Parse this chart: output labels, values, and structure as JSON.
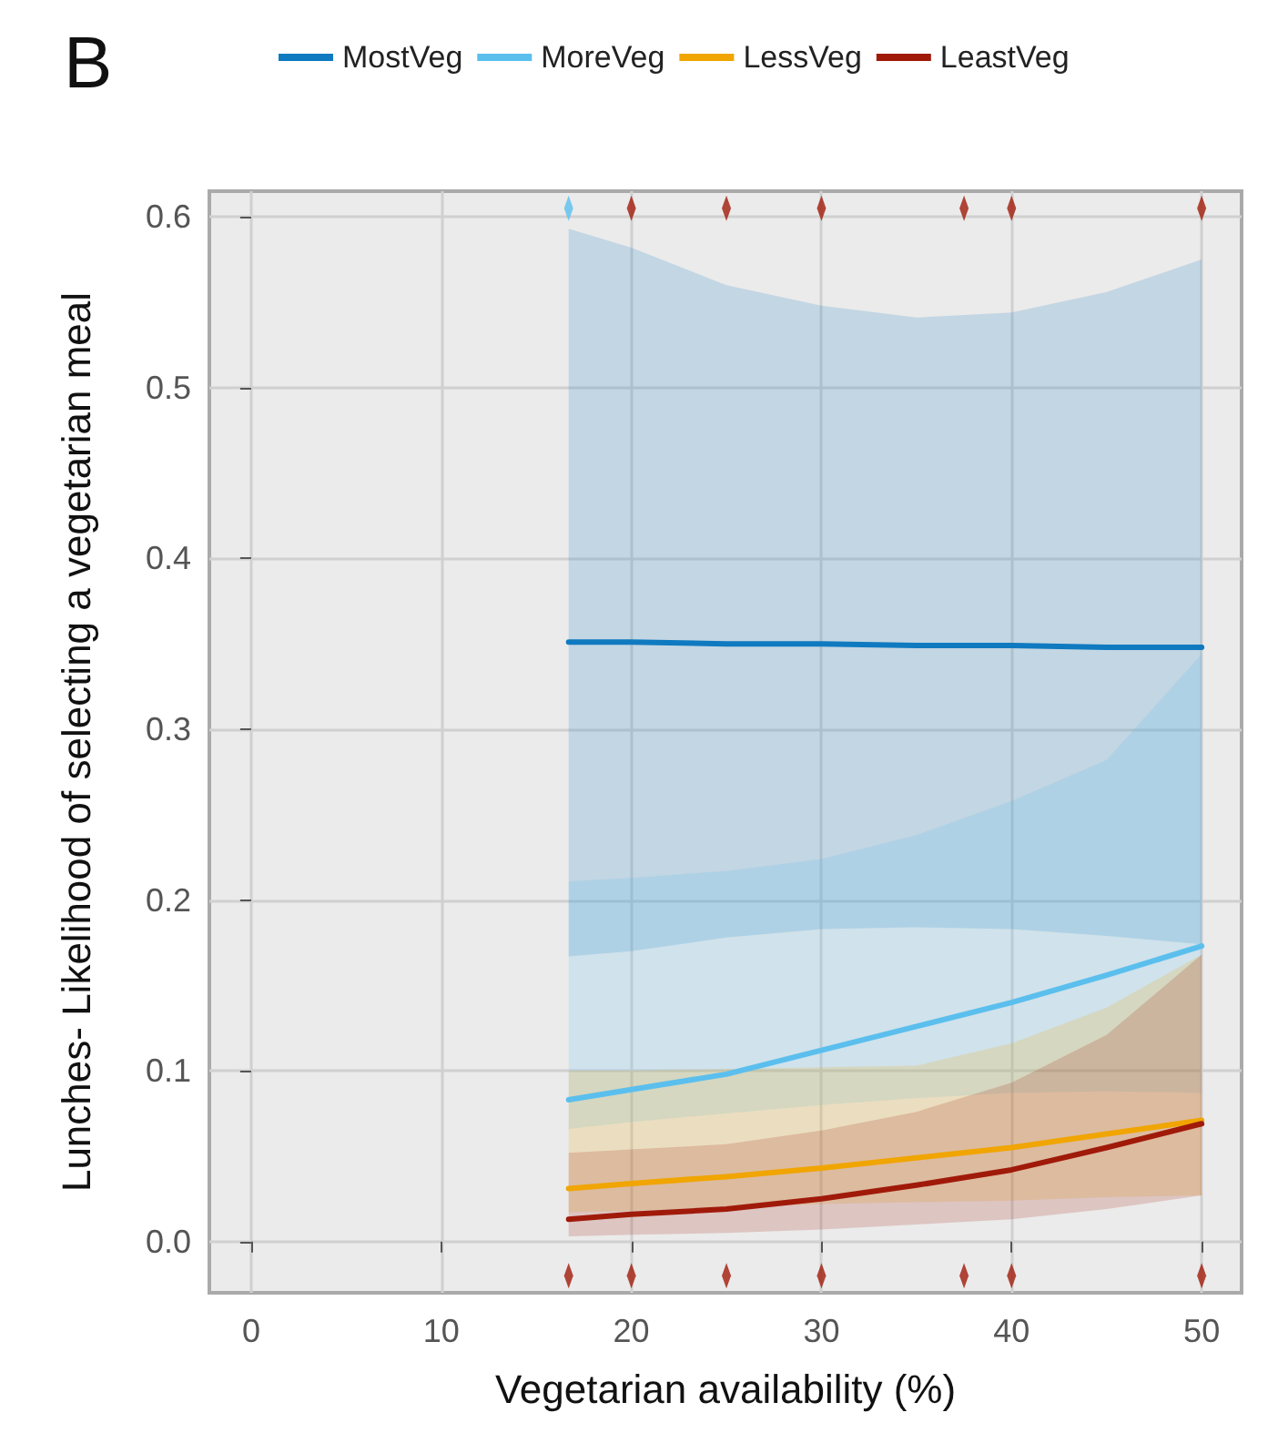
{
  "chart_data": {
    "type": "line",
    "title": "B",
    "xlabel": "Vegetarian availability (%)",
    "ylabel": "Lunches- Likelihood of selecting a vegetarian meal",
    "xlim": [
      -2.2,
      52.1
    ],
    "xticks": [
      0,
      10,
      20,
      30,
      40,
      50
    ],
    "ylim": [
      -0.03,
      0.615
    ],
    "yticks": [
      {
        "value": 0,
        "label": "0.0"
      },
      {
        "value": 0.1,
        "label": "0.1"
      },
      {
        "value": 0.2,
        "label": "0.2"
      },
      {
        "value": 0.3,
        "label": "0.3"
      },
      {
        "value": 0.4,
        "label": "0.4"
      },
      {
        "value": 0.5,
        "label": "0.5"
      },
      {
        "value": 0.6,
        "label": "0.6"
      }
    ],
    "grid": true,
    "legend": "top",
    "marker": "none",
    "line_style": "solid",
    "x": [
      16.7,
      20,
      25,
      30,
      35,
      40,
      45,
      50
    ],
    "series": [
      {
        "name": "MostVeg",
        "color": "#0f7ac0",
        "values": [
          0.351,
          0.351,
          0.35,
          0.35,
          0.349,
          0.349,
          0.348,
          0.348
        ],
        "lower": [
          0.167,
          0.17,
          0.178,
          0.183,
          0.184,
          0.183,
          0.179,
          0.174
        ],
        "upper": [
          0.593,
          0.582,
          0.56,
          0.548,
          0.541,
          0.544,
          0.556,
          0.575
        ]
      },
      {
        "name": "MoreVeg",
        "color": "#5bbfee",
        "values": [
          0.083,
          0.089,
          0.098,
          0.112,
          0.126,
          0.14,
          0.156,
          0.173
        ],
        "lower": [
          0.066,
          0.07,
          0.075,
          0.08,
          0.084,
          0.087,
          0.088,
          0.087
        ],
        "upper": [
          0.211,
          0.213,
          0.217,
          0.224,
          0.238,
          0.258,
          0.282,
          0.344
        ]
      },
      {
        "name": "LessVeg",
        "color": "#f0a500",
        "values": [
          0.031,
          0.034,
          0.038,
          0.043,
          0.049,
          0.055,
          0.063,
          0.071
        ],
        "lower": [
          0.017,
          0.018,
          0.02,
          0.022,
          0.023,
          0.024,
          0.026,
          0.027
        ],
        "upper": [
          0.1,
          0.1,
          0.101,
          0.102,
          0.103,
          0.116,
          0.137,
          0.168
        ]
      },
      {
        "name": "LeastVeg",
        "color": "#a01a0a",
        "values": [
          0.013,
          0.016,
          0.019,
          0.025,
          0.033,
          0.042,
          0.055,
          0.069
        ],
        "lower": [
          0.003,
          0.004,
          0.005,
          0.007,
          0.01,
          0.013,
          0.019,
          0.027
        ],
        "upper": [
          0.052,
          0.054,
          0.057,
          0.065,
          0.076,
          0.093,
          0.121,
          0.168
        ]
      },
      {
        "type": "scatter",
        "marker": "diamond",
        "color": "#a01a0a",
        "x": [
          16.7,
          20,
          25,
          30,
          37.5,
          40,
          50
        ],
        "values": [
          -0.02,
          -0.02,
          -0.02,
          -0.02,
          -0.02,
          -0.02,
          -0.02
        ]
      },
      {
        "type": "scatter",
        "marker": "diamond",
        "color": "#a01a0a",
        "x": [
          20,
          25,
          30,
          37.5,
          40,
          50
        ],
        "values": [
          0.605,
          0.605,
          0.605,
          0.605,
          0.605,
          0.605
        ]
      },
      {
        "type": "scatter",
        "marker": "diamond",
        "color": "#5bbfee",
        "x": [
          16.7
        ],
        "values": [
          0.605
        ]
      }
    ]
  }
}
